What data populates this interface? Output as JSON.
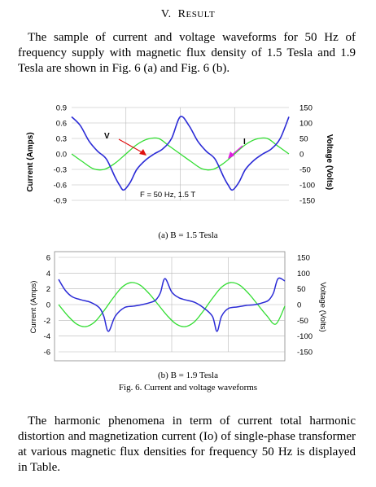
{
  "section": {
    "number": "V.",
    "title_first": "R",
    "title_rest": "ESULT"
  },
  "paragraph1": "The sample of current and voltage waveforms for 50 Hz of frequency supply with magnetic flux density of 1.5 Tesla and 1.9 Tesla are shown in Fig. 6 (a) and Fig. 6 (b).",
  "chart_data": [
    {
      "type": "line",
      "panel": "(a)",
      "caption": "(a)  B = 1.5 Tesla",
      "annotation": "F = 50 Hz, 1.5 T",
      "arrow_labels": {
        "voltage": "V",
        "current": "I"
      },
      "ylabel_left": "Current (Amps)",
      "ylabel_right": "Voltage (Volts)",
      "left_ticks": [
        "0.9",
        "0.6",
        "0.3",
        "0.0",
        "-0.3",
        "-0.6",
        "-0.9"
      ],
      "right_ticks": [
        "150",
        "100",
        "50",
        "0",
        "-50",
        "-100",
        "-150"
      ],
      "ylim_left": [
        -0.9,
        0.9
      ],
      "ylim_right": [
        -150,
        150
      ],
      "x_period_fraction": 0.5,
      "grid": true,
      "series": [
        {
          "key": "current",
          "color": "#2b2bd6",
          "x": [
            0.0,
            0.04,
            0.08,
            0.12,
            0.16,
            0.2,
            0.22,
            0.24,
            0.27,
            0.3,
            0.34,
            0.38,
            0.42,
            0.46,
            0.5,
            0.54,
            0.58,
            0.62,
            0.66,
            0.7,
            0.72,
            0.74,
            0.77,
            0.8,
            0.84,
            0.88,
            0.92,
            0.96,
            1.0
          ],
          "values": [
            0.72,
            0.55,
            0.25,
            0.05,
            -0.1,
            -0.45,
            -0.6,
            -0.7,
            -0.55,
            -0.3,
            -0.12,
            0.0,
            0.1,
            0.3,
            0.72,
            0.55,
            0.25,
            0.05,
            -0.1,
            -0.45,
            -0.6,
            -0.7,
            -0.55,
            -0.3,
            -0.12,
            0.0,
            0.1,
            0.3,
            0.72
          ]
        },
        {
          "key": "voltage",
          "color": "#33dd33",
          "x": [
            0.0,
            0.05,
            0.1,
            0.15,
            0.2,
            0.25,
            0.3,
            0.35,
            0.4,
            0.45,
            0.5,
            0.55,
            0.6,
            0.65,
            0.7,
            0.75,
            0.8,
            0.85,
            0.9,
            0.95,
            1.0
          ],
          "values": [
            0,
            -25,
            -48,
            -50,
            -30,
            0,
            30,
            48,
            50,
            25,
            0,
            -25,
            -48,
            -50,
            -30,
            0,
            30,
            48,
            50,
            25,
            0
          ]
        }
      ]
    },
    {
      "type": "line",
      "panel": "(b)",
      "caption": "(b) B = 1.9 Tesla",
      "ylabel_left": "Current (Amps)",
      "ylabel_right": "Voltage (Volts)",
      "left_ticks": [
        "6",
        "4",
        "2",
        "0",
        "-2",
        "-4",
        "-6"
      ],
      "right_ticks": [
        "150",
        "100",
        "50",
        "0",
        "-50",
        "-100",
        "-150"
      ],
      "ylim_left": [
        -6,
        6
      ],
      "ylim_right": [
        -150,
        150
      ],
      "grid": true,
      "series": [
        {
          "key": "current",
          "color": "#2b2bd6",
          "x": [
            0.0,
            0.03,
            0.06,
            0.1,
            0.14,
            0.18,
            0.2,
            0.22,
            0.25,
            0.29,
            0.33,
            0.37,
            0.41,
            0.43,
            0.45,
            0.47,
            0.5,
            0.53,
            0.56,
            0.6,
            0.64,
            0.68,
            0.7,
            0.72,
            0.75,
            0.79,
            0.83,
            0.87,
            0.91,
            0.93,
            0.95,
            0.97,
            1.0
          ],
          "values": [
            3.2,
            1.8,
            1.0,
            0.6,
            0.3,
            -0.4,
            -1.5,
            -3.4,
            -1.5,
            -0.4,
            -0.2,
            0.0,
            0.3,
            0.6,
            1.5,
            3.3,
            1.6,
            0.9,
            0.6,
            0.3,
            -0.4,
            -1.5,
            -3.4,
            -1.5,
            -0.5,
            -0.3,
            -0.1,
            0.0,
            0.3,
            0.6,
            1.5,
            3.3,
            3.0
          ]
        },
        {
          "key": "voltage",
          "color": "#33dd33",
          "x": [
            0.0,
            0.04,
            0.08,
            0.12,
            0.16,
            0.2,
            0.24,
            0.28,
            0.32,
            0.36,
            0.4,
            0.44,
            0.48,
            0.52,
            0.56,
            0.6,
            0.64,
            0.68,
            0.72,
            0.76,
            0.8,
            0.84,
            0.88,
            0.92,
            0.96,
            1.0
          ],
          "values": [
            0,
            -35,
            -62,
            -70,
            -55,
            -20,
            20,
            55,
            70,
            62,
            35,
            0,
            -35,
            -62,
            -70,
            -55,
            -20,
            20,
            55,
            70,
            62,
            35,
            0,
            -35,
            -62,
            -5
          ]
        }
      ]
    }
  ],
  "fig_caption": "Fig. 6. Current and voltage waveforms",
  "paragraph2": "The harmonic phenomena in term of current total harmonic distortion and magnetization current (Io) of single-phase transformer at various magnetic flux densities for frequency 50 Hz is displayed in Table."
}
